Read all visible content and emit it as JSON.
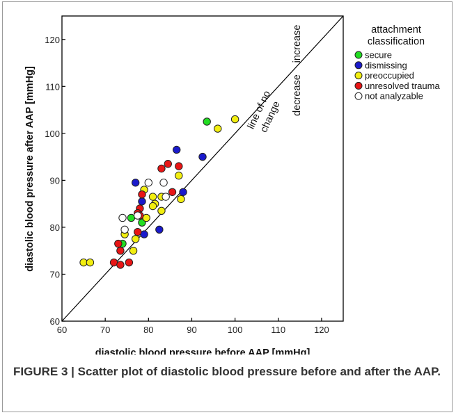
{
  "caption": "FIGURE 3 | Scatter plot of diastolic blood pressure before and after the AAP.",
  "chart_data": {
    "type": "scatter",
    "title": "",
    "xlabel": "diastolic blood pressure before AAP [mmHg]",
    "ylabel": "diastolic blood pressure after AAP [mmHg]",
    "xlim": [
      60,
      125
    ],
    "ylim": [
      60,
      125
    ],
    "xticks": [
      60,
      70,
      80,
      90,
      100,
      110,
      120
    ],
    "yticks": [
      60,
      70,
      80,
      90,
      100,
      110,
      120
    ],
    "grid": false,
    "legend": {
      "title": [
        "attachment",
        "classification"
      ],
      "placement": "right, outside plot"
    },
    "reference_line": {
      "label": [
        "line of no",
        "change"
      ],
      "from": [
        60,
        60
      ],
      "to": [
        125,
        125
      ]
    },
    "annotations": [
      "increase",
      "decrease"
    ],
    "series": [
      {
        "name": "secure",
        "color": "#22dd22",
        "points": [
          [
            93.5,
            102.5
          ],
          [
            76,
            82
          ],
          [
            78.5,
            81
          ],
          [
            74,
            76.5
          ]
        ]
      },
      {
        "name": "dismissing",
        "color": "#1a1acc",
        "points": [
          [
            86.5,
            96.5
          ],
          [
            92.5,
            95
          ],
          [
            77,
            89.5
          ],
          [
            88,
            87.5
          ],
          [
            78.5,
            85.5
          ],
          [
            82.5,
            79.5
          ],
          [
            79,
            78.5
          ]
        ]
      },
      {
        "name": "preoccupied",
        "color": "#f2ee10",
        "points": [
          [
            100,
            103
          ],
          [
            96,
            101
          ],
          [
            87,
            91
          ],
          [
            79,
            88
          ],
          [
            81,
            86.5
          ],
          [
            83,
            86.5
          ],
          [
            87.5,
            86
          ],
          [
            81.5,
            85
          ],
          [
            81,
            84.5
          ],
          [
            83,
            83.5
          ],
          [
            79.5,
            82
          ],
          [
            74.5,
            78.5
          ],
          [
            77,
            77.5
          ],
          [
            76.5,
            75
          ],
          [
            65,
            72.5
          ],
          [
            66.5,
            72.5
          ]
        ]
      },
      {
        "name": "unresolved trauma",
        "color": "#e81515",
        "points": [
          [
            84.5,
            93.5
          ],
          [
            83,
            92.5
          ],
          [
            87,
            93
          ],
          [
            78.5,
            87
          ],
          [
            85.5,
            87.5
          ],
          [
            78,
            84
          ],
          [
            77.5,
            83
          ],
          [
            78,
            82.5
          ],
          [
            77.5,
            79
          ],
          [
            73,
            76.5
          ],
          [
            73.5,
            75
          ],
          [
            72,
            72.5
          ],
          [
            75.5,
            72.5
          ],
          [
            73.5,
            72
          ]
        ]
      },
      {
        "name": "not analyzable",
        "color": "#ffffff",
        "points": [
          [
            80,
            89.5
          ],
          [
            83.5,
            89.5
          ],
          [
            84,
            86.5
          ],
          [
            74,
            82
          ],
          [
            77.5,
            82.5
          ],
          [
            74.5,
            79.5
          ]
        ]
      }
    ]
  }
}
